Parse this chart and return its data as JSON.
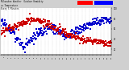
{
  "title_line1": "Milwaukee Weather",
  "title_line2": "vs Temperature",
  "title_line3": "Every 5 Minutes",
  "background_color": "#d0d0d0",
  "plot_background": "#ffffff",
  "legend_humidity_color": "#0000ff",
  "legend_temp_color": "#ff0000",
  "humidity_color": "#0000cc",
  "temp_color": "#cc0000",
  "dot_size": 1.5,
  "num_points": 288,
  "right_ytick_labels": [
    "100",
    "80",
    "60",
    "40",
    "20"
  ],
  "right_ytick_values": [
    100,
    80,
    60,
    40,
    20
  ],
  "grid_color": "#bbbbbb",
  "grid_style": ":"
}
